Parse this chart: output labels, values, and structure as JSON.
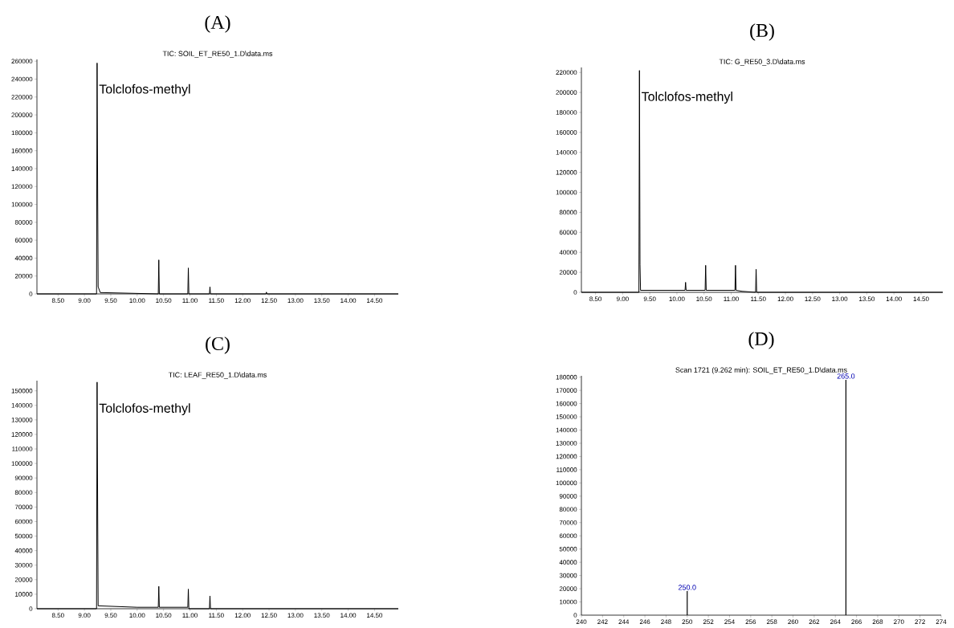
{
  "chart_data": [
    {
      "type": "line",
      "title": "(A)",
      "subtitle": "TIC: SOIL_ET_RE50_1.D\\data.ms",
      "color": "#000000",
      "x": [
        8.1,
        9.23,
        9.24,
        9.26,
        9.3,
        10.4,
        10.41,
        10.42,
        10.96,
        10.97,
        10.98,
        11.37,
        11.38,
        11.39,
        12.44,
        12.45,
        12.46,
        14.95
      ],
      "values": [
        0,
        0,
        258000,
        8000,
        1500,
        0,
        38000,
        0,
        0,
        29000,
        0,
        0,
        8000,
        0,
        0,
        2000,
        0,
        0
      ],
      "xlim": [
        8.1,
        14.95
      ],
      "ylim": [
        0,
        262000
      ],
      "xticks": [
        {
          "value": 8.5,
          "label": "8.50"
        },
        {
          "value": 9,
          "label": "9.00"
        },
        {
          "value": 9.5,
          "label": "9.50"
        },
        {
          "value": 10,
          "label": "10.00"
        },
        {
          "value": 10.5,
          "label": "10.50"
        },
        {
          "value": 11,
          "label": "11.00"
        },
        {
          "value": 11.5,
          "label": "11.50"
        },
        {
          "value": 12,
          "label": "12.00"
        },
        {
          "value": 12.5,
          "label": "12.50"
        },
        {
          "value": 13,
          "label": "13.00"
        },
        {
          "value": 13.5,
          "label": "13.50"
        },
        {
          "value": 14,
          "label": "14.00"
        },
        {
          "value": 14.5,
          "label": "14.50"
        }
      ],
      "yticks": [
        0,
        20000,
        40000,
        60000,
        80000,
        100000,
        120000,
        140000,
        160000,
        180000,
        200000,
        220000,
        240000,
        260000
      ],
      "annotations": [
        {
          "text": "Tolclofos-methyl",
          "x": 9.24,
          "y": 258000
        }
      ]
    },
    {
      "type": "line",
      "title": "(B)",
      "subtitle": "TIC: G_RE50_3.D\\data.ms",
      "color": "#000000",
      "x": [
        8.24,
        9.3,
        9.31,
        9.32,
        9.33,
        10.0,
        10.15,
        10.16,
        10.17,
        10.52,
        10.53,
        10.54,
        11.07,
        11.08,
        11.09,
        11.2,
        11.45,
        11.46,
        11.47,
        14.9
      ],
      "values": [
        0,
        0,
        222000,
        28000,
        2000,
        2000,
        2000,
        10000,
        2000,
        2000,
        27000,
        2000,
        2000,
        27000,
        2000,
        1000,
        0,
        23000,
        0,
        0
      ],
      "xlim": [
        8.24,
        14.9
      ],
      "ylim": [
        0,
        225000
      ],
      "xticks": [
        {
          "value": 8.5,
          "label": "8.50"
        },
        {
          "value": 9,
          "label": "9.00"
        },
        {
          "value": 9.5,
          "label": "9.50"
        },
        {
          "value": 10,
          "label": "10.00"
        },
        {
          "value": 10.5,
          "label": "10.50"
        },
        {
          "value": 11,
          "label": "11.00"
        },
        {
          "value": 11.5,
          "label": "11.50"
        },
        {
          "value": 12,
          "label": "12.00"
        },
        {
          "value": 12.5,
          "label": "12.50"
        },
        {
          "value": 13,
          "label": "13.00"
        },
        {
          "value": 13.5,
          "label": "13.50"
        },
        {
          "value": 14,
          "label": "14.00"
        },
        {
          "value": 14.5,
          "label": "14.50"
        }
      ],
      "yticks": [
        0,
        20000,
        40000,
        60000,
        80000,
        100000,
        120000,
        140000,
        160000,
        180000,
        200000,
        220000
      ],
      "annotations": [
        {
          "text": "Tolclofos-methyl",
          "x": 9.31,
          "y": 222000
        }
      ]
    },
    {
      "type": "line",
      "title": "(C)",
      "subtitle": "TIC: LEAF_RE50_1.D\\data.ms",
      "color": "#000000",
      "x": [
        8.1,
        9.23,
        9.24,
        9.26,
        10.0,
        10.4,
        10.41,
        10.42,
        10.96,
        10.97,
        10.98,
        11.37,
        11.38,
        11.39,
        14.95
      ],
      "values": [
        0,
        0,
        156000,
        2000,
        1000,
        1000,
        15400,
        1000,
        1000,
        13500,
        0,
        0,
        8800,
        0,
        0
      ],
      "xlim": [
        8.1,
        14.95
      ],
      "ylim": [
        0,
        157000
      ],
      "xticks": [
        {
          "value": 8.5,
          "label": "8.50"
        },
        {
          "value": 9,
          "label": "9.00"
        },
        {
          "value": 9.5,
          "label": "9.50"
        },
        {
          "value": 10,
          "label": "10.00"
        },
        {
          "value": 10.5,
          "label": "10.50"
        },
        {
          "value": 11,
          "label": "11.00"
        },
        {
          "value": 11.5,
          "label": "11.50"
        },
        {
          "value": 12,
          "label": "12.00"
        },
        {
          "value": 12.5,
          "label": "12.50"
        },
        {
          "value": 13,
          "label": "13.00"
        },
        {
          "value": 13.5,
          "label": "13.50"
        },
        {
          "value": 14,
          "label": "14.00"
        },
        {
          "value": 14.5,
          "label": "14.50"
        }
      ],
      "yticks": [
        0,
        10000,
        20000,
        30000,
        40000,
        50000,
        60000,
        70000,
        80000,
        90000,
        100000,
        110000,
        120000,
        130000,
        140000,
        150000
      ],
      "annotations": [
        {
          "text": "Tolclofos-methyl",
          "x": 9.24,
          "y": 156000
        }
      ]
    },
    {
      "type": "bar",
      "title": "(D)",
      "subtitle": "Scan 1721 (9.262 min): SOIL_ET_RE50_1.D\\data.ms",
      "color": "#000000",
      "x": [
        250,
        265
      ],
      "values": [
        18200,
        178000
      ],
      "xlim": [
        240,
        274
      ],
      "ylim": [
        0,
        181000
      ],
      "xticks": [
        240,
        242,
        244,
        246,
        248,
        250,
        252,
        254,
        256,
        258,
        260,
        262,
        264,
        266,
        268,
        270,
        272,
        274
      ],
      "yticks": [
        0,
        10000,
        20000,
        30000,
        40000,
        50000,
        60000,
        70000,
        80000,
        90000,
        100000,
        110000,
        120000,
        130000,
        140000,
        150000,
        160000,
        170000,
        180000
      ],
      "annotations": [
        {
          "text": "250.0",
          "x": 250,
          "y": 18200
        },
        {
          "text": "265.0",
          "x": 265,
          "y": 178000
        }
      ]
    }
  ]
}
